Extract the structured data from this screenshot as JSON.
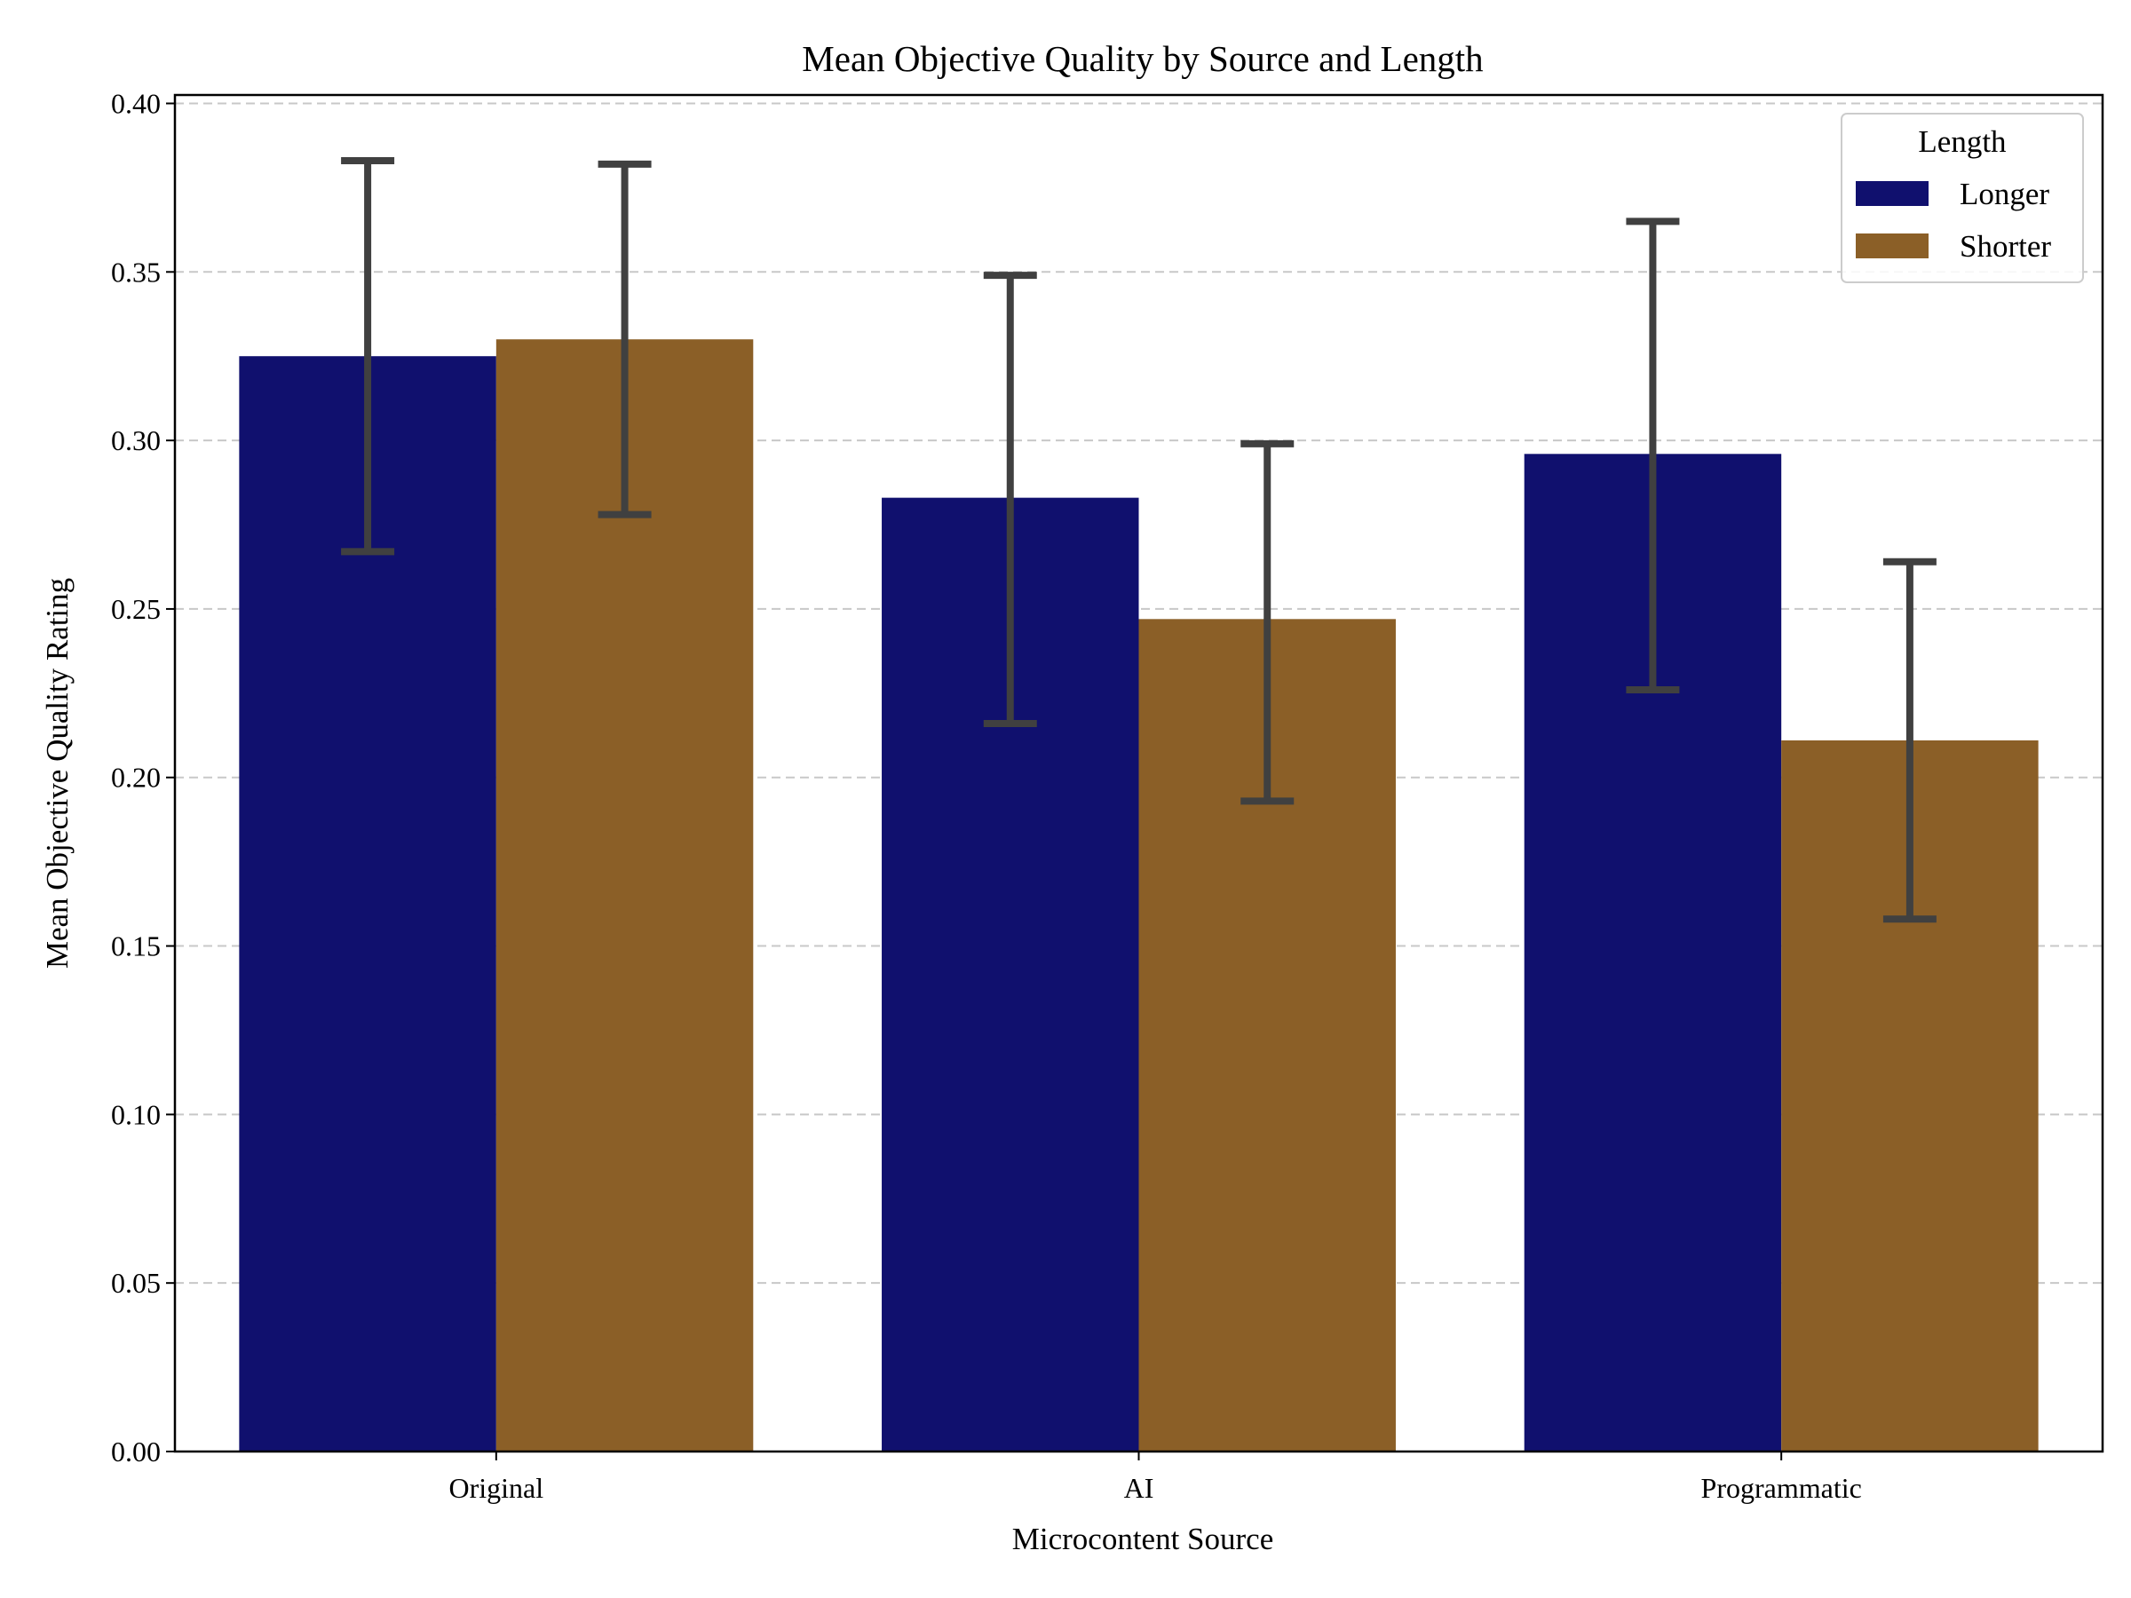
{
  "chart_data": {
    "type": "bar",
    "title": "Mean Objective Quality by Source and Length",
    "xlabel": "Microcontent Source",
    "ylabel": "Mean Objective Quality Rating",
    "categories": [
      "Original",
      "AI",
      "Programmatic"
    ],
    "ylim": [
      0,
      0.4025
    ],
    "yticks": [
      "0.00",
      "0.05",
      "0.10",
      "0.15",
      "0.20",
      "0.25",
      "0.30",
      "0.35",
      "0.40"
    ],
    "grid": "y-dashed",
    "legend": {
      "title": "Length",
      "placement": "top-right"
    },
    "series": [
      {
        "name": "Longer",
        "color": "#10106e",
        "values": [
          0.325,
          0.283,
          0.296
        ],
        "error_low": [
          0.267,
          0.216,
          0.226
        ],
        "error_high": [
          0.383,
          0.349,
          0.365
        ]
      },
      {
        "name": "Shorter",
        "color": "#8b5f27",
        "values": [
          0.33,
          0.247,
          0.211
        ],
        "error_low": [
          0.278,
          0.193,
          0.158
        ],
        "error_high": [
          0.382,
          0.299,
          0.264
        ]
      }
    ]
  }
}
